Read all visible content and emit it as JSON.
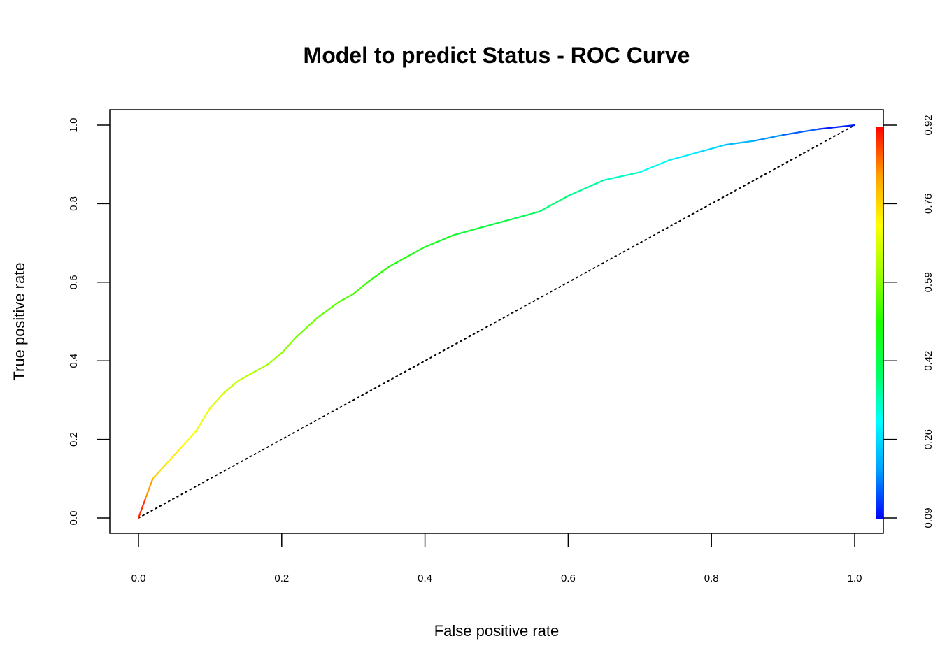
{
  "chart_data": {
    "type": "line",
    "title": "Model to predict Status - ROC Curve",
    "xlabel": "False positive rate",
    "ylabel": "True positive rate",
    "xlim": [
      0,
      1
    ],
    "ylim": [
      0,
      1
    ],
    "x_ticks": [
      "0.0",
      "0.2",
      "0.4",
      "0.6",
      "0.8",
      "1.0"
    ],
    "y_ticks": [
      "0.0",
      "0.2",
      "0.4",
      "0.6",
      "0.8",
      "1.0"
    ],
    "colorbar": {
      "ticks": [
        "0.09",
        "0.26",
        "0.42",
        "0.59",
        "0.76",
        "0.92"
      ],
      "range": [
        0.09,
        0.92
      ],
      "colors": [
        "#0000ff",
        "#00a0ff",
        "#00ffff",
        "#00ff60",
        "#20ff00",
        "#a0ff00",
        "#ffff00",
        "#ffa000",
        "#ff0000"
      ]
    },
    "grid": false,
    "series": [
      {
        "line_style": "solid, colored by cutoff",
        "x": [
          0,
          0.01,
          0.02,
          0.03,
          0.04,
          0.06,
          0.08,
          0.1,
          0.12,
          0.14,
          0.16,
          0.18,
          0.2,
          0.22,
          0.25,
          0.28,
          0.3,
          0.32,
          0.35,
          0.38,
          0.4,
          0.44,
          0.48,
          0.52,
          0.56,
          0.6,
          0.65,
          0.7,
          0.74,
          0.78,
          0.82,
          0.86,
          0.9,
          0.95,
          1.0
        ],
        "y": [
          0,
          0.05,
          0.1,
          0.12,
          0.14,
          0.18,
          0.22,
          0.28,
          0.32,
          0.35,
          0.37,
          0.39,
          0.42,
          0.46,
          0.51,
          0.55,
          0.57,
          0.6,
          0.64,
          0.67,
          0.69,
          0.72,
          0.74,
          0.76,
          0.78,
          0.82,
          0.86,
          0.88,
          0.91,
          0.93,
          0.95,
          0.96,
          0.975,
          0.99,
          1.0
        ],
        "cutoff": [
          0.92,
          0.86,
          0.78,
          0.75,
          0.74,
          0.72,
          0.7,
          0.68,
          0.66,
          0.64,
          0.63,
          0.61,
          0.6,
          0.58,
          0.56,
          0.55,
          0.54,
          0.52,
          0.5,
          0.49,
          0.48,
          0.46,
          0.44,
          0.42,
          0.4,
          0.38,
          0.35,
          0.32,
          0.29,
          0.27,
          0.24,
          0.2,
          0.17,
          0.13,
          0.09
        ]
      },
      {
        "line_style": "dotted",
        "x": [
          0,
          1
        ],
        "y": [
          0,
          1
        ]
      }
    ]
  }
}
